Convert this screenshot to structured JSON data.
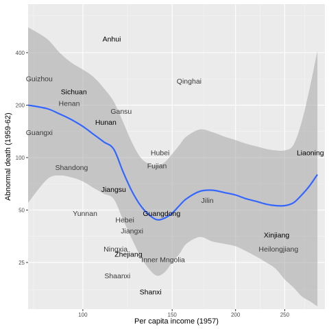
{
  "chart_data": {
    "type": "scatter",
    "title": "",
    "xlabel": "Per capita income (1957)",
    "ylabel": "Abnormal death (1959-62)",
    "x_scale": "log",
    "y_scale": "log",
    "xlim": [
      78,
      300
    ],
    "ylim": [
      13.5,
      760
    ],
    "x_ticks": [
      100,
      150,
      200,
      250
    ],
    "y_ticks": [
      25,
      50,
      100,
      200,
      400
    ],
    "grid": true,
    "legend": "none",
    "colors": {
      "panel": "#ebebeb",
      "grid_major": "#ffffff",
      "grid_minor": "#f5f5f5",
      "smooth_line": "#3366ff",
      "ribbon": "#a6a6a6",
      "label_dark": "#000000",
      "label_light": "#3a3a3a"
    },
    "points": [
      {
        "label": "Anhui",
        "x": 114,
        "y": 480
      },
      {
        "label": "Guizhou",
        "x": 82,
        "y": 285
      },
      {
        "label": "Qinghai",
        "x": 162,
        "y": 275
      },
      {
        "label": "Sichuan",
        "x": 96,
        "y": 240
      },
      {
        "label": "Henan",
        "x": 94,
        "y": 205
      },
      {
        "label": "Gansu",
        "x": 119,
        "y": 185
      },
      {
        "label": "Hunan",
        "x": 111,
        "y": 160
      },
      {
        "label": "Guangxi",
        "x": 82,
        "y": 140
      },
      {
        "label": "Hubei",
        "x": 142,
        "y": 107
      },
      {
        "label": "Liaoning",
        "x": 283,
        "y": 107
      },
      {
        "label": "Fujian",
        "x": 140,
        "y": 90
      },
      {
        "label": "Shandong",
        "x": 95,
        "y": 88
      },
      {
        "label": "Jiangsu",
        "x": 115,
        "y": 66
      },
      {
        "label": "Jilin",
        "x": 176,
        "y": 57
      },
      {
        "label": "Yunnan",
        "x": 101,
        "y": 48
      },
      {
        "label": "Guangdong",
        "x": 143,
        "y": 48
      },
      {
        "label": "Hebei",
        "x": 121,
        "y": 44
      },
      {
        "label": "Jiangxi",
        "x": 125,
        "y": 38
      },
      {
        "label": "Xinjiang",
        "x": 241,
        "y": 36
      },
      {
        "label": "Ningxia",
        "x": 116,
        "y": 30
      },
      {
        "label": "Heilongjiang",
        "x": 243,
        "y": 30
      },
      {
        "label": "Zhejiang",
        "x": 123,
        "y": 28
      },
      {
        "label": "Inner Mngolia",
        "x": 144,
        "y": 26
      },
      {
        "label": "Shaanxi",
        "x": 117,
        "y": 21
      },
      {
        "label": "Shanxi",
        "x": 136,
        "y": 17
      }
    ],
    "smooth": {
      "method": "loess",
      "x": [
        78,
        85,
        90,
        95,
        100,
        105,
        110,
        115,
        120,
        125,
        130,
        135,
        140,
        145,
        150,
        155,
        160,
        170,
        180,
        190,
        200,
        210,
        220,
        230,
        240,
        250,
        260,
        270,
        280,
        290
      ],
      "y": [
        200,
        191,
        178,
        165,
        151,
        136,
        123,
        112,
        83,
        64,
        53,
        47,
        44,
        45,
        48,
        53,
        58,
        64,
        65,
        63,
        61,
        58,
        56,
        54,
        53,
        53,
        55,
        61,
        69,
        80
      ],
      "lower": [
        55,
        75,
        79,
        77,
        73,
        67,
        62,
        58,
        44,
        34,
        27,
        23,
        21,
        22,
        25,
        28,
        32,
        35,
        33,
        32,
        31,
        29,
        27,
        25,
        23,
        20,
        18,
        16,
        15,
        14
      ],
      "upper": [
        560,
        480,
        400,
        350,
        320,
        290,
        250,
        210,
        160,
        122,
        100,
        92,
        90,
        94,
        105,
        118,
        132,
        145,
        140,
        132,
        126,
        120,
        116,
        112,
        110,
        110,
        118,
        160,
        250,
        410
      ]
    }
  }
}
